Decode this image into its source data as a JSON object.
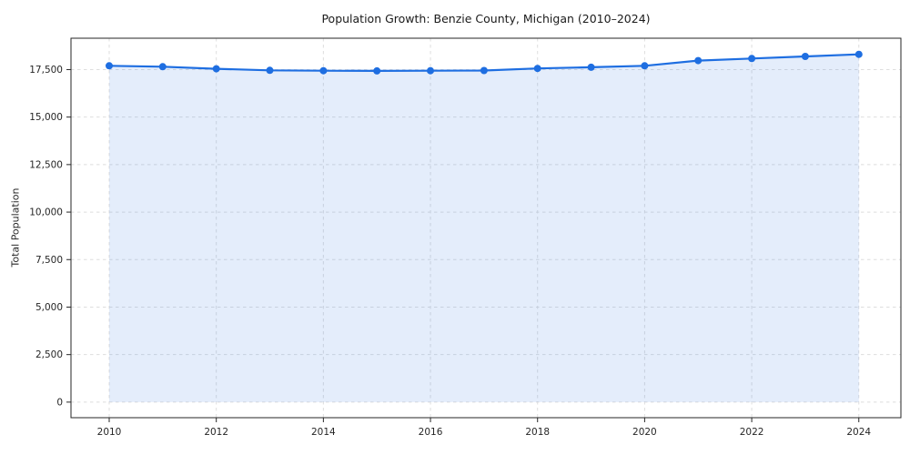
{
  "chart_data": {
    "type": "area",
    "title": "Population Growth: Benzie County, Michigan (2010–2024)",
    "xlabel": "",
    "ylabel": "Total Population",
    "x": [
      2010,
      2011,
      2012,
      2013,
      2014,
      2015,
      2016,
      2017,
      2018,
      2019,
      2020,
      2021,
      2022,
      2023,
      2024
    ],
    "values": [
      17700,
      17650,
      17540,
      17460,
      17440,
      17430,
      17440,
      17450,
      17560,
      17620,
      17700,
      17970,
      18080,
      18190,
      18300
    ],
    "series_name": "Total Population",
    "xlim": [
      2009.286,
      2024.786
    ],
    "ylim": [
      -820,
      19150
    ],
    "baseline": 0,
    "grid": true,
    "grid_style": "dashed",
    "legend_position": "none",
    "yticks": [
      {
        "value": 0,
        "label": "0"
      },
      {
        "value": 2500,
        "label": "2,500"
      },
      {
        "value": 5000,
        "label": "5,000"
      },
      {
        "value": 7500,
        "label": "7,500"
      },
      {
        "value": 10000,
        "label": "10,000"
      },
      {
        "value": 12500,
        "label": "12,500"
      },
      {
        "value": 15000,
        "label": "15,000"
      },
      {
        "value": 17500,
        "label": "17,500"
      }
    ],
    "xticks": [
      {
        "value": 2010,
        "label": "2010"
      },
      {
        "value": 2012,
        "label": "2012"
      },
      {
        "value": 2014,
        "label": "2014"
      },
      {
        "value": 2016,
        "label": "2016"
      },
      {
        "value": 2018,
        "label": "2018"
      },
      {
        "value": 2020,
        "label": "2020"
      },
      {
        "value": 2022,
        "label": "2022"
      },
      {
        "value": 2024,
        "label": "2024"
      }
    ],
    "colors": {
      "line": "#1e6ee1",
      "marker": "#1e6ee1",
      "fill": "#1e6ee1",
      "fill_opacity": 0.12,
      "grid": "#dedede",
      "spine": "#262626",
      "tick_text": "#262626",
      "background": "#ffffff"
    }
  }
}
